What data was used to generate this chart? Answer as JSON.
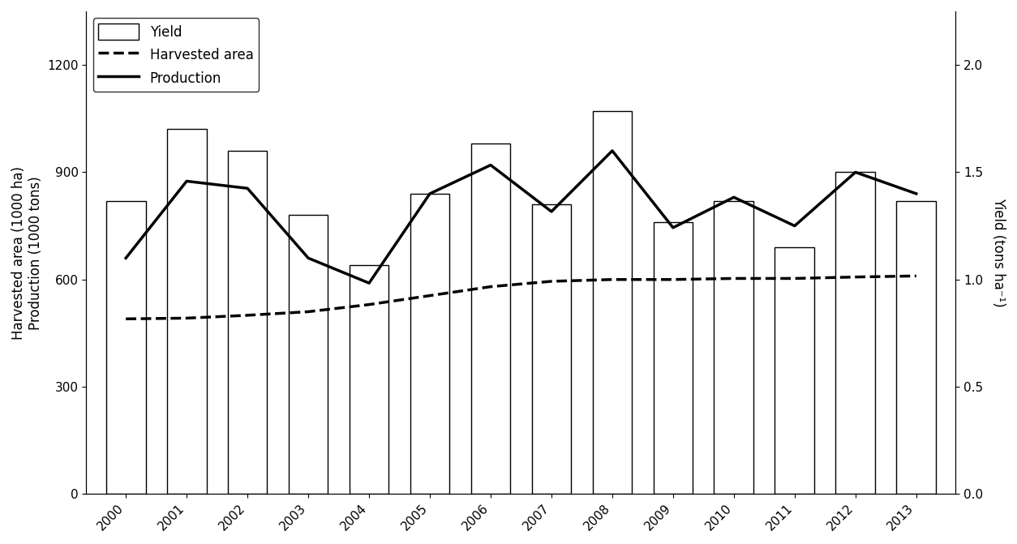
{
  "years": [
    2000,
    2001,
    2002,
    2003,
    2004,
    2005,
    2006,
    2007,
    2008,
    2009,
    2010,
    2011,
    2012,
    2013
  ],
  "yield_bars": [
    820,
    1020,
    960,
    780,
    640,
    840,
    980,
    810,
    1070,
    760,
    820,
    690,
    900,
    820
  ],
  "harvested_area": [
    490,
    492,
    500,
    510,
    530,
    555,
    580,
    595,
    600,
    600,
    603,
    603,
    607,
    610
  ],
  "production": [
    660,
    875,
    855,
    660,
    590,
    840,
    920,
    790,
    960,
    745,
    830,
    750,
    900,
    840
  ],
  "left_ylabel": "Harvested area (1000 ha)\nProduction (1000 tons)",
  "right_ylabel": "Yield (tons ha⁻¹)",
  "ylim_left": [
    0,
    1350
  ],
  "ylim_right": [
    0.0,
    2.25
  ],
  "yticks_left": [
    0,
    300,
    600,
    900,
    1200
  ],
  "yticks_right": [
    0.0,
    0.5,
    1.0,
    1.5,
    2.0
  ],
  "legend_labels": [
    "Yield",
    "Harvested area",
    "Production"
  ],
  "bar_color": "white",
  "bar_edgecolor": "black",
  "line_color": "black",
  "bar_width": 0.65
}
